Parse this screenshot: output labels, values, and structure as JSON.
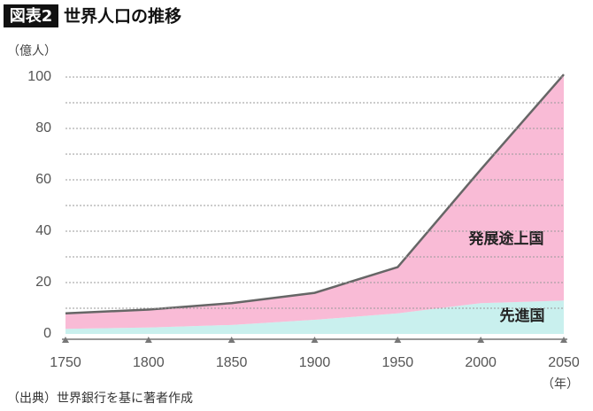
{
  "chart_data": {
    "type": "stacked-area",
    "badge": "図表2",
    "title": "世界人口の推移",
    "y_label": "（億人）",
    "x_label": "（年）",
    "source": "（出典）世界銀行を基に著者作成",
    "x": [
      1750,
      1800,
      1850,
      1900,
      1950,
      2000,
      2050
    ],
    "series": [
      {
        "name": "先進国",
        "color": "#c9f0ee",
        "values": [
          2,
          2.5,
          3.5,
          5.5,
          8,
          12,
          13
        ]
      },
      {
        "name": "発展途上国",
        "color": "#f9bbd6",
        "values": [
          6,
          7,
          8.5,
          10.5,
          18,
          52,
          88
        ]
      }
    ],
    "xlim": [
      1750,
      2050
    ],
    "xticks": [
      1750,
      1800,
      1850,
      1900,
      1950,
      2000,
      2050
    ],
    "ylim": [
      0,
      100
    ],
    "yticks": [
      0,
      20,
      40,
      60,
      80,
      100
    ],
    "grid_minor": [
      10,
      30,
      50,
      70,
      90
    ],
    "grid": true
  }
}
